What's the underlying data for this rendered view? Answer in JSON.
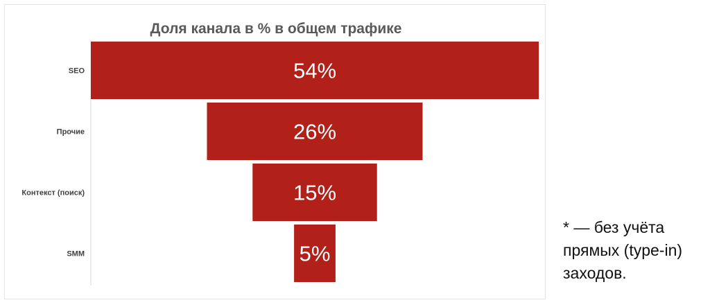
{
  "chart_data": {
    "type": "bar",
    "subtype": "funnel",
    "title": "Доля канала в % в общем трафике",
    "categories": [
      "SEO",
      "Прочие",
      "Контекст (поиск)",
      "SMM"
    ],
    "values": [
      54,
      26,
      15,
      5
    ],
    "value_labels": [
      "54%",
      "26%",
      "15%",
      "5%"
    ],
    "bar_color": "#b22119",
    "label_color": "#ffffff",
    "title_color": "#595959",
    "category_label_color": "#404040"
  },
  "footnote": "* — без учёта прямых (type-in) заходов."
}
